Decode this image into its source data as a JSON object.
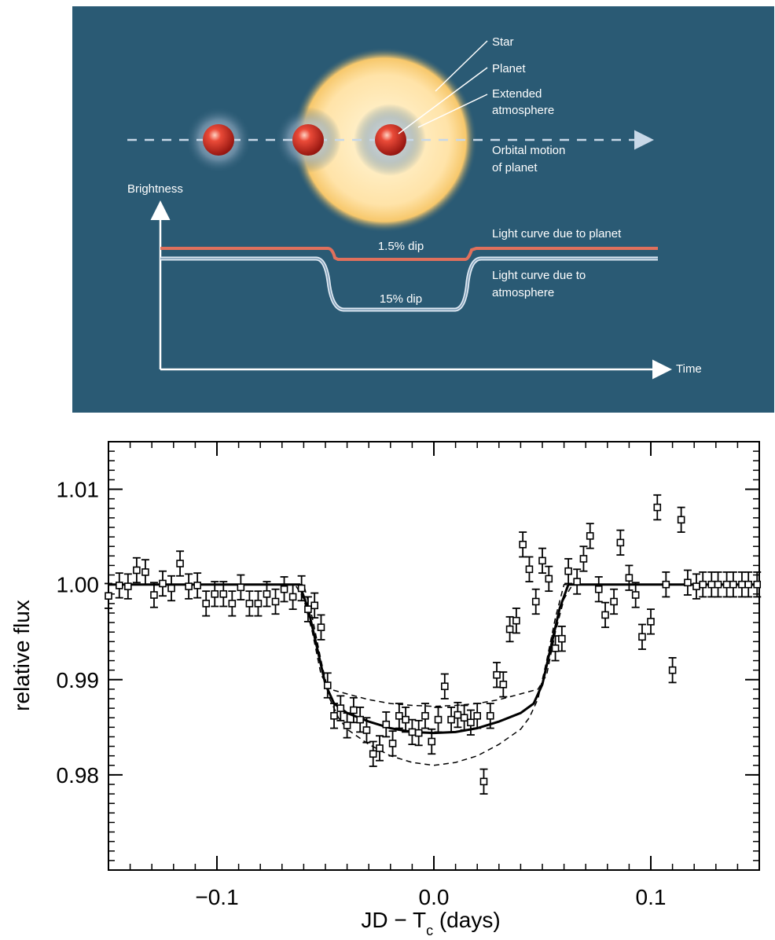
{
  "diagram": {
    "background": "#2a5a74",
    "labels": {
      "star": "Star",
      "planet": "Planet",
      "atmosphere_line1": "Extended",
      "atmosphere_line2": "atmosphere",
      "orbit_line1": "Orbital motion",
      "orbit_line2": "of planet",
      "brightness": "Brightness",
      "time": "Time",
      "dip_planet": "1.5% dip",
      "dip_atmosphere": "15% dip",
      "curve_planet": "Light curve due to planet",
      "curve_atm_line1": "Light curve due to",
      "curve_atm_line2": "atmosphere"
    },
    "colors": {
      "planet_curve": "#e0705c",
      "atmosphere_curve": "#ffffff",
      "planet": "#d42a1e",
      "star": "#ffe7b0"
    }
  },
  "chart_data": {
    "type": "scatter",
    "title": "",
    "xlabel": "JD − T",
    "xlabel_subscript": "c",
    "xlabel_suffix": " (days)",
    "ylabel": "relative flux",
    "xlim": [
      -0.15,
      0.15
    ],
    "ylim": [
      0.97,
      1.015
    ],
    "xticks": [
      -0.1,
      0.0,
      0.1
    ],
    "xtick_labels": [
      "−0.1",
      "0.0",
      "0.1"
    ],
    "yticks": [
      0.98,
      0.99,
      1.0,
      1.01
    ],
    "ytick_labels": [
      "0.98",
      "0.99",
      "1.00",
      "1.01"
    ],
    "grid": false,
    "series": [
      {
        "kind": "points_with_errorbars",
        "x": [
          -0.15,
          -0.145,
          -0.141,
          -0.137,
          -0.133,
          -0.129,
          -0.125,
          -0.121,
          -0.117,
          -0.113,
          -0.109,
          -0.105,
          -0.101,
          -0.097,
          -0.093,
          -0.089,
          -0.085,
          -0.081,
          -0.077,
          -0.073,
          -0.069,
          -0.065,
          -0.061,
          -0.058,
          -0.055,
          -0.052,
          -0.049,
          -0.046,
          -0.043,
          -0.04,
          -0.037,
          -0.034,
          -0.031,
          -0.028,
          -0.025,
          -0.022,
          -0.019,
          -0.016,
          -0.013,
          -0.01,
          -0.007,
          -0.004,
          -0.001,
          0.002,
          0.005,
          0.008,
          0.011,
          0.014,
          0.017,
          0.02,
          0.023,
          0.026,
          0.029,
          0.032,
          0.035,
          0.038,
          0.041,
          0.044,
          0.047,
          0.05,
          0.053,
          0.056,
          0.059,
          0.062,
          0.066,
          0.069,
          0.072,
          0.076,
          0.079,
          0.083,
          0.086,
          0.09,
          0.093,
          0.096,
          0.1,
          0.103,
          0.107,
          0.11,
          0.114,
          0.117,
          0.121,
          0.124,
          0.128,
          0.131,
          0.135,
          0.138,
          0.142,
          0.145,
          0.149
        ],
        "y": [
          0.9988,
          0.9999,
          0.9998,
          1.0015,
          1.0013,
          0.9989,
          1.0001,
          0.9996,
          1.0022,
          0.9998,
          0.9999,
          0.998,
          0.999,
          0.999,
          0.998,
          0.9997,
          0.998,
          0.998,
          0.999,
          0.9982,
          0.9995,
          0.9987,
          0.9996,
          0.9974,
          0.9978,
          0.9955,
          0.9894,
          0.9862,
          0.987,
          0.9852,
          0.9868,
          0.9858,
          0.9847,
          0.9822,
          0.9828,
          0.9853,
          0.9833,
          0.9862,
          0.9858,
          0.9845,
          0.9844,
          0.9862,
          0.9835,
          0.9858,
          0.9893,
          0.9858,
          0.9863,
          0.986,
          0.9855,
          0.9862,
          0.9793,
          0.9862,
          0.9905,
          0.9895,
          0.9953,
          0.9962,
          1.0042,
          1.0016,
          0.9982,
          1.0025,
          1.0006,
          0.9933,
          0.9943,
          1.0014,
          1.0003,
          1.0027,
          1.0051,
          0.9995,
          0.9968,
          0.9982,
          1.0044,
          1.0007,
          0.9989,
          0.9945,
          0.9961,
          1.0081,
          1.0,
          0.991,
          1.0068,
          1.0002,
          0.9998,
          1.0,
          1.0,
          1.0,
          1.0,
          1.0,
          1.0,
          1.0,
          1.0
        ],
        "yerr": 0.0013
      },
      {
        "kind": "model_curve",
        "x": [
          -0.15,
          -0.062,
          -0.058,
          -0.054,
          -0.05,
          -0.046,
          -0.04,
          -0.03,
          -0.02,
          -0.01,
          0.0,
          0.01,
          0.02,
          0.03,
          0.04,
          0.046,
          0.05,
          0.054,
          0.058,
          0.062,
          0.15
        ],
        "y": [
          1.0,
          1.0,
          0.9975,
          0.9935,
          0.9895,
          0.9875,
          0.9865,
          0.9856,
          0.9849,
          0.9845,
          0.9844,
          0.9845,
          0.9849,
          0.9856,
          0.9865,
          0.9875,
          0.9895,
          0.9935,
          0.9975,
          1.0,
          1.0
        ]
      },
      {
        "kind": "model_upper_dashed",
        "x": [
          -0.15,
          -0.064,
          -0.06,
          -0.056,
          -0.052,
          -0.048,
          -0.04,
          -0.03,
          -0.02,
          -0.01,
          0.0,
          0.01,
          0.02,
          0.03,
          0.04,
          0.048,
          0.052,
          0.056,
          0.06,
          0.064,
          0.15
        ],
        "y": [
          1.0,
          1.0,
          0.9985,
          0.995,
          0.9905,
          0.989,
          0.9885,
          0.9879,
          0.9875,
          0.9873,
          0.9872,
          0.9873,
          0.9875,
          0.9879,
          0.9885,
          0.989,
          0.9905,
          0.995,
          0.9985,
          1.0,
          1.0
        ]
      },
      {
        "kind": "model_lower_dashed",
        "x": [
          -0.15,
          -0.06,
          -0.056,
          -0.052,
          -0.048,
          -0.044,
          -0.04,
          -0.03,
          -0.02,
          -0.01,
          0.0,
          0.01,
          0.02,
          0.03,
          0.04,
          0.044,
          0.048,
          0.052,
          0.056,
          0.06,
          0.15
        ],
        "y": [
          1.0,
          1.0,
          0.9965,
          0.992,
          0.988,
          0.986,
          0.9848,
          0.9832,
          0.982,
          0.9813,
          0.981,
          0.9813,
          0.982,
          0.9832,
          0.9848,
          0.986,
          0.988,
          0.992,
          0.9965,
          1.0,
          1.0
        ]
      }
    ]
  }
}
